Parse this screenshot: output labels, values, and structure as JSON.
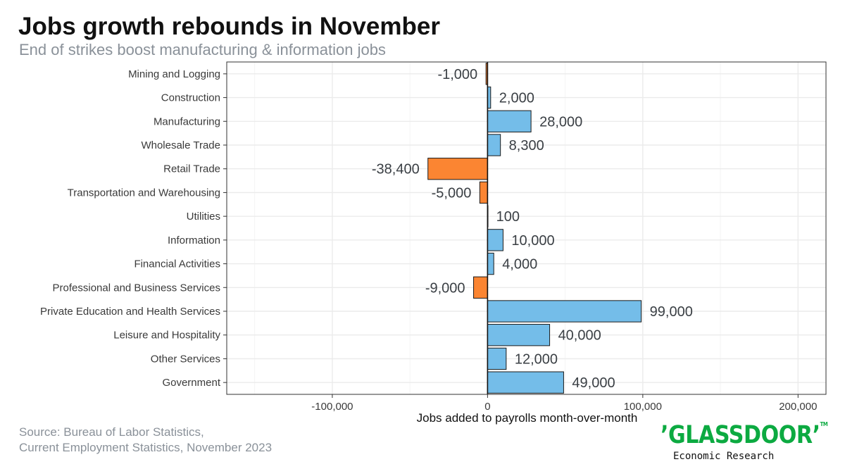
{
  "title": "Jobs growth rebounds in November",
  "subtitle": "End of strikes boost manufacturing & information jobs",
  "source": {
    "line1": "Source: Bureau of Labor Statistics,",
    "line2": "Current Employment Statistics, November 2023"
  },
  "logo": {
    "brand": "’GLASSDOOR’",
    "trademark": "TM",
    "subtitle": "Economic Research"
  },
  "colors": {
    "positive": "#74bde9",
    "negative": "#fb8532",
    "grid": "#ebebeb",
    "brand": "#0caa41"
  },
  "chart_data": {
    "type": "bar",
    "orientation": "horizontal",
    "categories": [
      "Mining and Logging",
      "Construction",
      "Manufacturing",
      "Wholesale Trade",
      "Retail Trade",
      "Transportation and Warehousing",
      "Utilities",
      "Information",
      "Financial Activities",
      "Professional and Business Services",
      "Private Education and Health Services",
      "Leisure and Hospitality",
      "Other Services",
      "Government"
    ],
    "values": [
      -1000,
      2000,
      28000,
      8300,
      -38400,
      -5000,
      100,
      10000,
      4000,
      -9000,
      99000,
      40000,
      12000,
      49000
    ],
    "data_labels": [
      "-1,000",
      "2,000",
      "28,000",
      "8,300",
      "-38,400",
      "-5,000",
      "100",
      "10,000",
      "4,000",
      "-9,000",
      "99,000",
      "40,000",
      "12,000",
      "49,000"
    ],
    "xlabel": "Jobs added to payrolls month-over-month",
    "ylabel": "",
    "xlim": [
      -168000,
      218000
    ],
    "xticks": [
      -100000,
      0,
      100000,
      200000
    ],
    "xtick_labels": [
      "-100,000",
      "0",
      "100,000",
      "200,000"
    ],
    "grid": true,
    "legend": "none"
  }
}
